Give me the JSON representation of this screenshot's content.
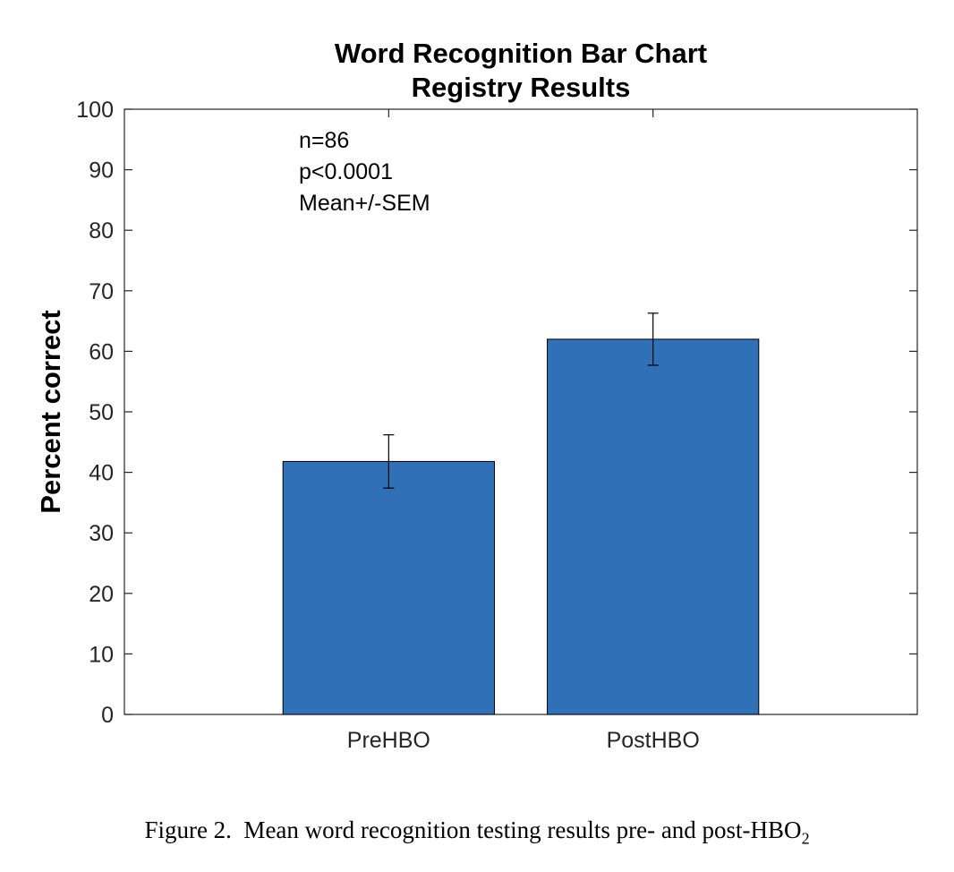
{
  "chart_data": {
    "type": "bar",
    "title": [
      "Word Recognition Bar Chart",
      "Registry Results"
    ],
    "ylabel": "Percent correct",
    "xlabel": "",
    "categories": [
      "PreHBO",
      "PostHBO"
    ],
    "values": [
      41.8,
      62.0
    ],
    "error_bars": [
      4.4,
      4.3
    ],
    "ylim": [
      0,
      100
    ],
    "yticks": [
      0,
      10,
      20,
      30,
      40,
      50,
      60,
      70,
      80,
      90,
      100
    ],
    "bar_color": "#3070b7",
    "grid": false,
    "annotations": [
      "n=86",
      "p<0.0001",
      "Mean+/-SEM"
    ]
  },
  "caption": {
    "text": "Figure 2.  Mean word recognition testing results pre- and post-HBO",
    "subscript": "2"
  }
}
